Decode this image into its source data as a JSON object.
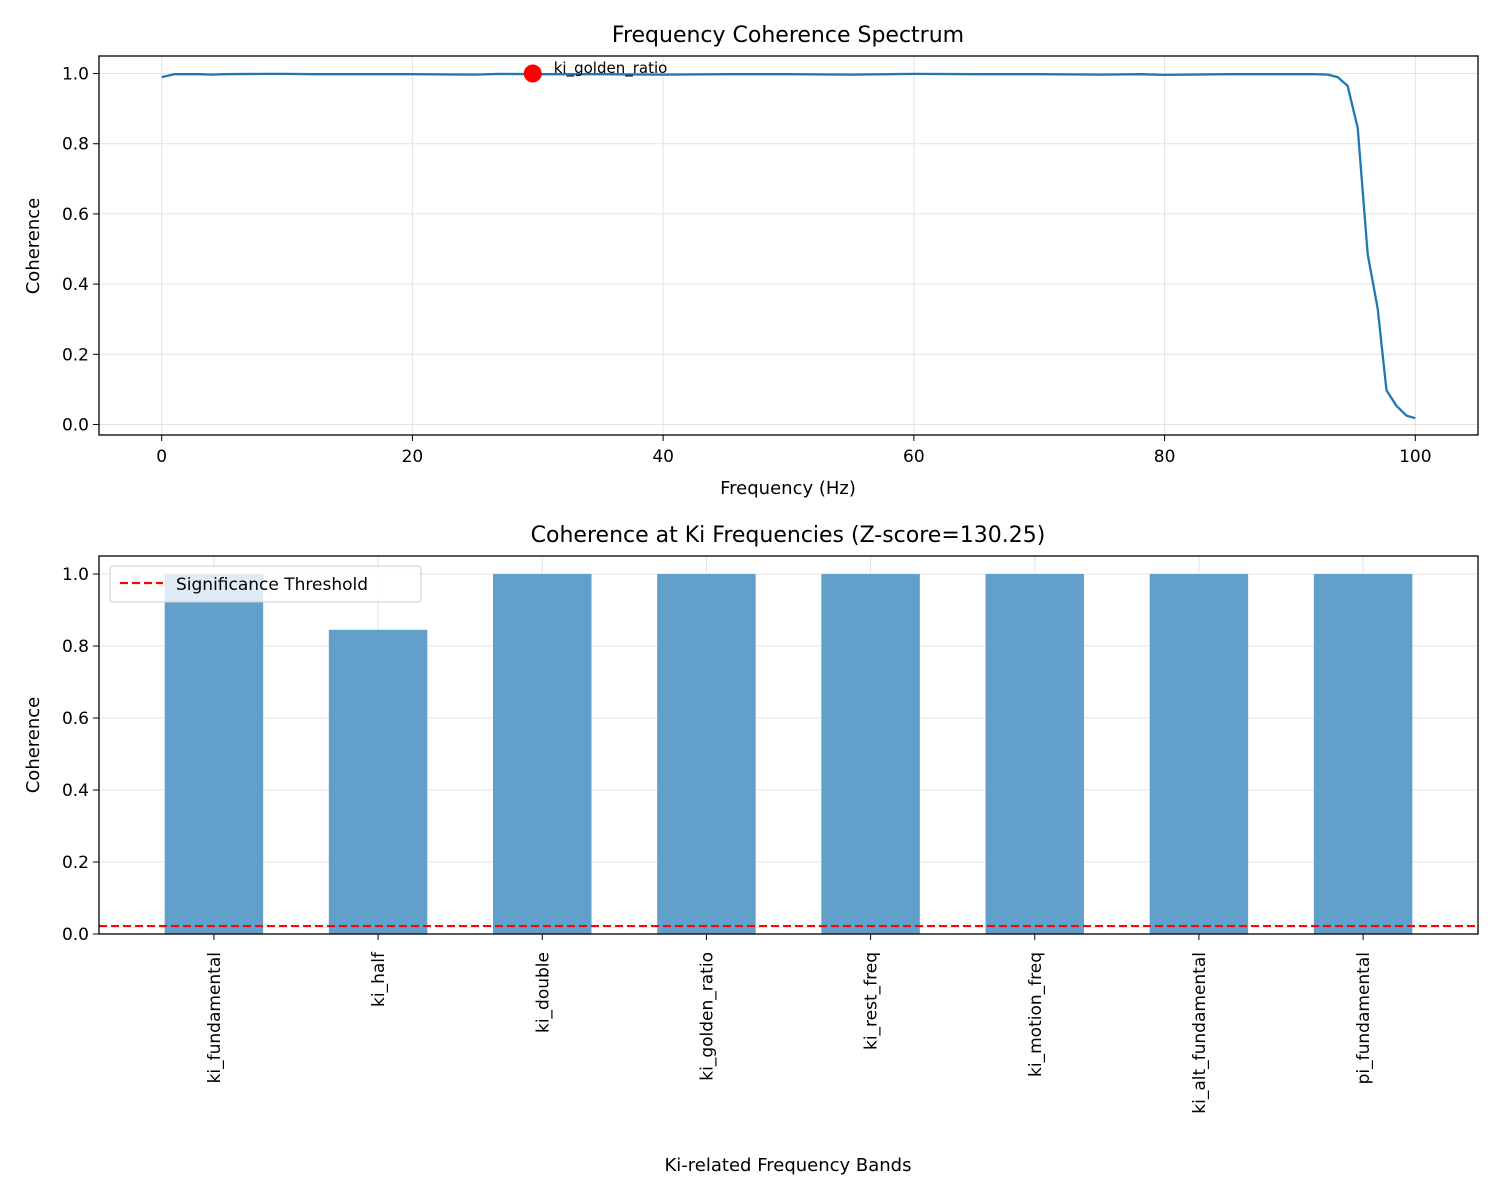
{
  "chart_data": [
    {
      "type": "line",
      "title": "Frequency Coherence Spectrum",
      "xlabel": "Frequency (Hz)",
      "ylabel": "Coherence",
      "xlim": [
        -5,
        105
      ],
      "ylim": [
        -0.03,
        1.05
      ],
      "xticks": [
        0,
        20,
        40,
        60,
        80,
        100
      ],
      "xtick_labels": [
        "0",
        "20",
        "40",
        "60",
        "80",
        "100"
      ],
      "yticks": [
        0.0,
        0.2,
        0.4,
        0.6,
        0.8,
        1.0
      ],
      "ytick_labels": [
        "0.0",
        "0.2",
        "0.4",
        "0.6",
        "0.8",
        "1.0"
      ],
      "grid": true,
      "line_color": "#1f77b4",
      "series": [
        {
          "x": [
            0,
            1,
            2,
            3,
            4,
            5,
            8,
            10,
            12,
            15,
            20,
            25,
            27,
            30,
            35,
            40,
            45,
            50,
            55,
            60,
            65,
            70,
            75,
            78,
            80,
            85,
            90,
            92,
            93,
            93.8,
            94.6,
            95.4,
            96.2,
            97,
            97.7,
            98.5,
            99.3,
            100
          ],
          "y": [
            0.99,
            0.998,
            0.998,
            0.998,
            0.997,
            0.998,
            0.999,
            0.999,
            0.998,
            0.998,
            0.998,
            0.997,
            0.999,
            0.998,
            0.998,
            0.997,
            0.998,
            0.998,
            0.997,
            0.999,
            0.998,
            0.998,
            0.997,
            0.998,
            0.996,
            0.998,
            0.998,
            0.998,
            0.997,
            0.99,
            0.965,
            0.845,
            0.485,
            0.33,
            0.097,
            0.053,
            0.025,
            0.018
          ]
        }
      ],
      "marker": {
        "x": 29.6,
        "y": 1.0,
        "label": "ki_golden_ratio",
        "color": "#ff0000"
      }
    },
    {
      "type": "bar",
      "title": "Coherence at Ki Frequencies (Z-score=130.25)",
      "xlabel": "Ki-related Frequency Bands",
      "ylabel": "Coherence",
      "categories": [
        "ki_fundamental",
        "ki_half",
        "ki_double",
        "ki_golden_ratio",
        "ki_rest_freq",
        "ki_motion_freq",
        "ki_alt_fundamental",
        "pi_fundamental"
      ],
      "values": [
        1.0,
        0.845,
        1.0,
        1.0,
        1.0,
        1.0,
        1.0,
        1.0
      ],
      "ylim": [
        0,
        1.05
      ],
      "yticks": [
        0.0,
        0.2,
        0.4,
        0.6,
        0.8,
        1.0
      ],
      "ytick_labels": [
        "0.0",
        "0.2",
        "0.4",
        "0.6",
        "0.8",
        "1.0"
      ],
      "grid": true,
      "bar_color": "#629fca",
      "threshold": {
        "value": 0.022,
        "label": "Significance Threshold",
        "color": "#ff0000"
      },
      "legend_position": "top-left"
    }
  ]
}
